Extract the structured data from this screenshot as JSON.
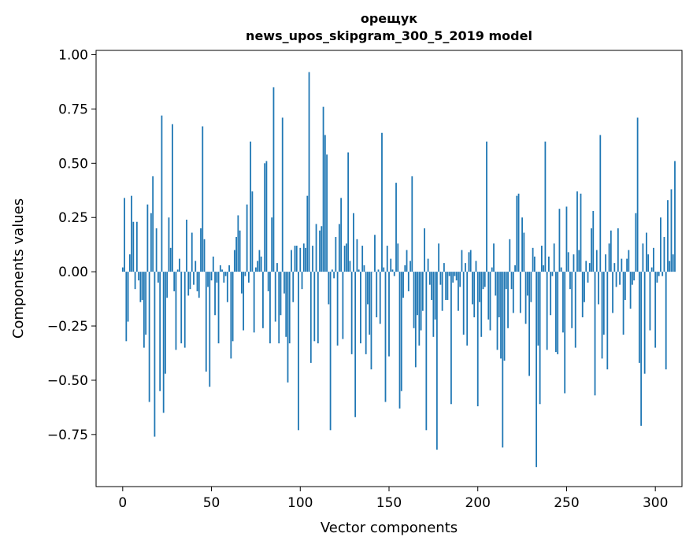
{
  "chart_data": {
    "type": "bar",
    "title_line1": "орещук",
    "title_line2": "news_upos_skipgram_300_5_2019 model",
    "xlabel": "Vector components",
    "ylabel": "Components values",
    "xlim": [
      -15,
      315
    ],
    "ylim": [
      -0.99,
      1.02
    ],
    "x_ticks": [
      0,
      50,
      100,
      150,
      200,
      250,
      300
    ],
    "x_tick_labels": [
      "0",
      "50",
      "100",
      "150",
      "200",
      "250",
      "300"
    ],
    "y_ticks": [
      1.0,
      0.75,
      0.5,
      0.25,
      0.0,
      -0.25,
      -0.5,
      -0.75
    ],
    "y_tick_labels": [
      "1.00",
      "0.75",
      "0.50",
      "0.25",
      "0.00",
      "−0.25",
      "−0.50",
      "−0.75"
    ],
    "bar_color": "#1f77b4",
    "values": [
      0.02,
      0.34,
      -0.32,
      -0.23,
      0.08,
      0.35,
      0.23,
      -0.08,
      0.23,
      -0.04,
      -0.14,
      -0.13,
      -0.35,
      -0.29,
      0.31,
      -0.6,
      0.27,
      0.44,
      -0.76,
      0.2,
      -0.05,
      -0.55,
      0.72,
      -0.65,
      -0.47,
      -0.12,
      0.25,
      0.11,
      0.68,
      -0.09,
      -0.36,
      0.01,
      0.06,
      -0.33,
      0.0,
      -0.35,
      0.24,
      -0.11,
      -0.08,
      0.18,
      -0.06,
      0.05,
      -0.09,
      -0.12,
      0.2,
      0.67,
      0.15,
      -0.46,
      -0.07,
      -0.53,
      -0.04,
      0.07,
      -0.2,
      -0.05,
      -0.33,
      0.03,
      0.01,
      -0.05,
      -0.02,
      -0.14,
      0.03,
      -0.4,
      -0.32,
      0.1,
      0.16,
      0.26,
      0.19,
      -0.1,
      -0.27,
      -0.02,
      0.31,
      -0.05,
      0.6,
      0.37,
      -0.28,
      0.02,
      0.05,
      0.1,
      0.07,
      -0.26,
      0.5,
      0.51,
      -0.09,
      -0.33,
      0.25,
      0.85,
      -0.23,
      0.04,
      -0.33,
      -0.2,
      0.71,
      -0.1,
      -0.3,
      -0.51,
      -0.33,
      0.1,
      -0.14,
      0.12,
      0.12,
      -0.73,
      0.11,
      -0.08,
      0.13,
      0.11,
      0.35,
      0.92,
      -0.42,
      0.12,
      -0.32,
      0.22,
      -0.33,
      0.19,
      0.21,
      0.76,
      0.63,
      0.54,
      -0.15,
      -0.73,
      0.01,
      -0.03,
      0.16,
      -0.34,
      0.22,
      0.34,
      -0.31,
      0.12,
      0.13,
      0.55,
      0.05,
      -0.38,
      0.27,
      -0.67,
      0.15,
      0.01,
      -0.33,
      0.12,
      0.03,
      -0.38,
      -0.15,
      -0.29,
      -0.45,
      0.0,
      0.17,
      -0.21,
      0.01,
      -0.24,
      0.64,
      0.02,
      -0.6,
      0.12,
      -0.39,
      0.06,
      0.01,
      -0.02,
      0.41,
      0.13,
      -0.63,
      -0.55,
      -0.12,
      0.03,
      0.1,
      -0.09,
      0.05,
      0.44,
      -0.26,
      -0.44,
      -0.2,
      -0.34,
      -0.27,
      -0.18,
      0.2,
      -0.73,
      0.06,
      -0.06,
      -0.13,
      -0.3,
      -0.22,
      -0.82,
      0.13,
      -0.06,
      -0.18,
      0.04,
      -0.13,
      -0.13,
      -0.02,
      -0.61,
      -0.05,
      -0.02,
      -0.04,
      -0.18,
      -0.07,
      0.1,
      -0.29,
      0.04,
      -0.34,
      0.09,
      0.1,
      -0.15,
      -0.21,
      0.05,
      -0.62,
      -0.14,
      -0.3,
      -0.08,
      -0.07,
      0.6,
      -0.22,
      -0.27,
      0.02,
      0.13,
      -0.11,
      -0.36,
      -0.21,
      -0.4,
      -0.81,
      -0.41,
      -0.08,
      -0.26,
      0.15,
      -0.08,
      -0.19,
      0.03,
      0.35,
      0.36,
      -0.19,
      0.25,
      0.18,
      -0.24,
      -0.11,
      -0.48,
      -0.14,
      0.11,
      0.07,
      -0.9,
      -0.34,
      -0.61,
      0.12,
      0.03,
      0.6,
      -0.36,
      0.07,
      -0.2,
      -0.02,
      0.13,
      -0.37,
      -0.38,
      0.29,
      0.02,
      -0.28,
      -0.56,
      0.3,
      0.09,
      -0.08,
      -0.26,
      0.08,
      -0.35,
      0.37,
      0.1,
      0.36,
      -0.21,
      -0.14,
      0.05,
      -0.05,
      0.04,
      0.2,
      0.28,
      -0.57,
      0.1,
      -0.15,
      0.63,
      -0.4,
      -0.29,
      0.08,
      -0.45,
      0.13,
      0.19,
      -0.19,
      0.04,
      -0.07,
      0.2,
      -0.06,
      0.06,
      -0.29,
      -0.13,
      0.06,
      0.1,
      -0.17,
      -0.06,
      -0.04,
      0.27,
      0.71,
      -0.42,
      -0.71,
      0.13,
      -0.47,
      0.18,
      0.08,
      -0.27,
      0.02,
      0.11,
      -0.35,
      -0.05,
      -0.02,
      0.25,
      -0.02,
      0.16,
      -0.45,
      0.33,
      0.05,
      0.38,
      0.08,
      0.51
    ]
  }
}
